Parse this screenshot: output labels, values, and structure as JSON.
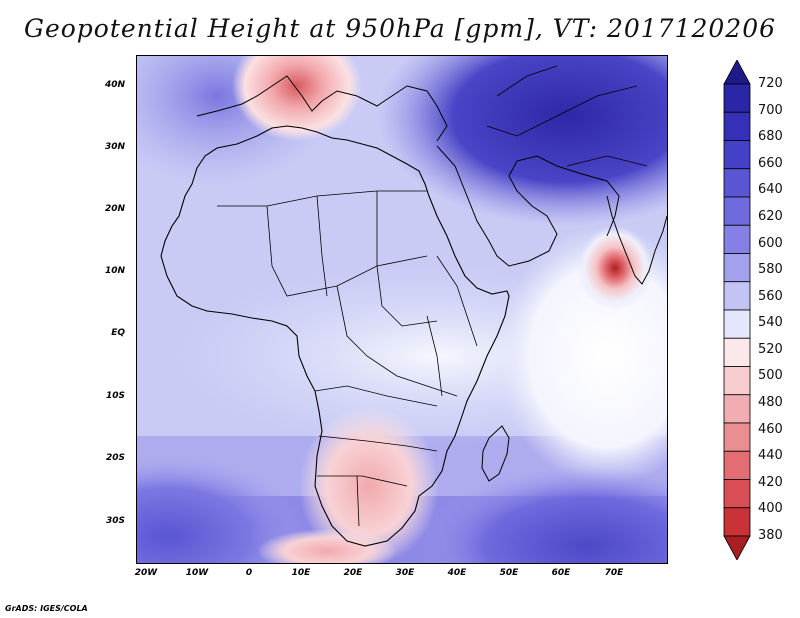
{
  "title": "Geopotential Height at 950hPa [gpm], VT: 2017120206",
  "credit": "GrADS: IGES/COLA",
  "latitude_labels": [
    "40N",
    "30N",
    "20N",
    "10N",
    "EQ",
    "10S",
    "20S",
    "30S"
  ],
  "longitude_labels": [
    "20W",
    "10W",
    "0",
    "10E",
    "20E",
    "30E",
    "40E",
    "50E",
    "60E",
    "70E"
  ],
  "colorbar": {
    "levels": [
      "720",
      "700",
      "680",
      "660",
      "640",
      "620",
      "600",
      "580",
      "560",
      "540",
      "520",
      "500",
      "480",
      "460",
      "440",
      "420",
      "400",
      "380"
    ],
    "colors": [
      "#1f1a8c",
      "#2a26a8",
      "#3530b8",
      "#4540c8",
      "#5a55d2",
      "#6f6ade",
      "#8580e6",
      "#a3a0ee",
      "#c4c4f4",
      "#e4e6fb",
      "#fbe8ea",
      "#f7cdd0",
      "#f1adb1",
      "#ea8e92",
      "#e26d72",
      "#d84e54",
      "#c93338",
      "#a81e22"
    ]
  },
  "map": {
    "ocean_color": "#d8dcf8",
    "coast_color": "#000000"
  }
}
